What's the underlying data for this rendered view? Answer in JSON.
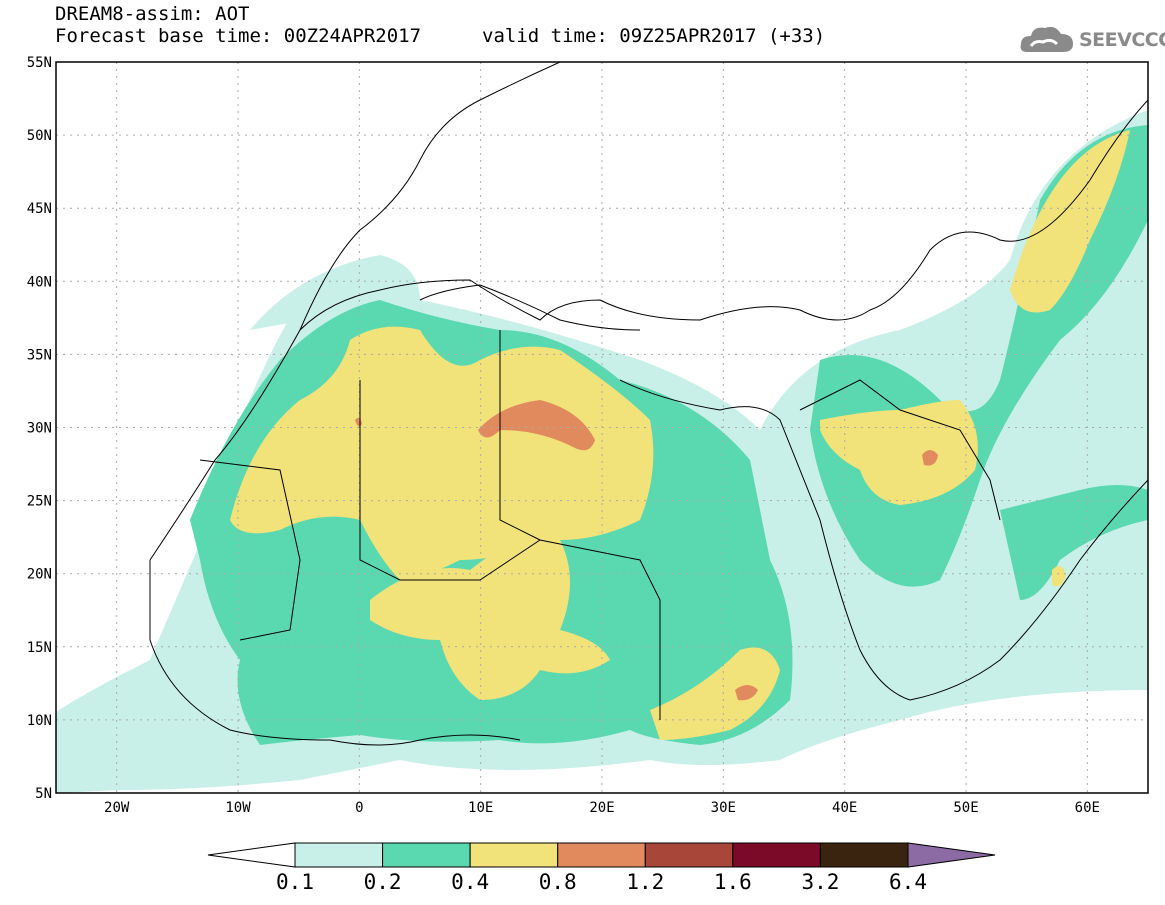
{
  "title": {
    "line1": "DREAM8-assim: AOT",
    "line2": "Forecast base time: 00Z24APR2017",
    "valid": "valid time: 09Z25APR2017 (+33)"
  },
  "logo": {
    "text": "SEEVCCC",
    "icon": "cloud-icon"
  },
  "map": {
    "projection": "lat-lon",
    "lon_range": [
      "25W",
      "65E"
    ],
    "lat_range": [
      "5N",
      "55N"
    ],
    "lat_labels": [
      "55N",
      "50N",
      "45N",
      "40N",
      "35N",
      "30N",
      "25N",
      "20N",
      "15N",
      "10N",
      "5N"
    ],
    "lon_labels": [
      "20W",
      "10W",
      "0",
      "10E",
      "20E",
      "30E",
      "40E",
      "50E",
      "60E"
    ],
    "grid": true
  },
  "colorbar": {
    "levels": [
      "0.1",
      "0.2",
      "0.4",
      "0.8",
      "1.2",
      "1.6",
      "3.2",
      "6.4"
    ],
    "colors": [
      "#ffffff",
      "#c8f0e8",
      "#5ad8b0",
      "#f2e27a",
      "#e08a5e",
      "#a8463a",
      "#7a0a28",
      "#3a2410",
      "#8c6aa4"
    ]
  }
}
